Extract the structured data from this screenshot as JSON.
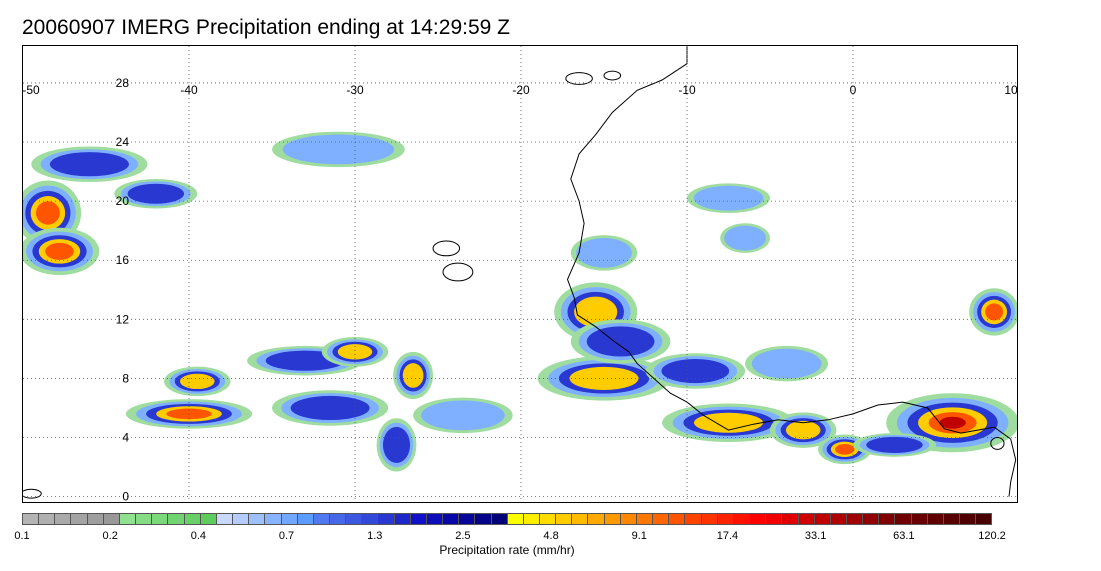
{
  "title": "20060907 IMERG Precipitation ending at 14:29:59 Z",
  "map": {
    "lon_range": [
      -50,
      10
    ],
    "lat_range": [
      -0.5,
      30.5
    ],
    "lon_ticks": [
      -50,
      -40,
      -30,
      -20,
      -10,
      0,
      10
    ],
    "lon_labels": [
      "-50",
      "-40",
      "-30",
      "-20",
      "-10",
      "0",
      "10"
    ],
    "lat_ticks": [
      0,
      4,
      8,
      12,
      16,
      20,
      24,
      28
    ],
    "lat_labels": [
      "0",
      "4",
      "8",
      "12",
      "16",
      "20",
      "24",
      "28"
    ],
    "gridlines": "dotted",
    "coastline_color": "#000000"
  },
  "colorbar": {
    "label": "Precipitation rate (mm/hr)",
    "tick_labels": [
      "0.1",
      "0.2",
      "0.4",
      "0.7",
      "1.3",
      "2.5",
      "4.8",
      "9.1",
      "17.4",
      "33.1",
      "63.1",
      "120.2"
    ],
    "colors": [
      "#b4b4b4",
      "#b0b0b0",
      "#aaaaaa",
      "#a4a4a4",
      "#9e9e9e",
      "#989898",
      "#8fe08f",
      "#85dc85",
      "#7bd87b",
      "#71d471",
      "#67d067",
      "#5dcc5d",
      "#c8d8ff",
      "#b4ccff",
      "#9ec0ff",
      "#88b4ff",
      "#72a8ff",
      "#5c9cff",
      "#5078f0",
      "#4668e8",
      "#3c58e0",
      "#3248d8",
      "#2838d0",
      "#1e28c8",
      "#1010c8",
      "#0c0cb8",
      "#0808a8",
      "#060698",
      "#040488",
      "#020278",
      "#ffff00",
      "#ffee00",
      "#ffdd00",
      "#ffcc00",
      "#ffbb00",
      "#ffaa00",
      "#ff9900",
      "#ff8800",
      "#ff7700",
      "#ff6600",
      "#ff5500",
      "#ff4400",
      "#ff3300",
      "#ff2200",
      "#ff1100",
      "#ff0000",
      "#f00000",
      "#e00000",
      "#d00000",
      "#c00000",
      "#b00000",
      "#a00000",
      "#900000",
      "#800000",
      "#700000",
      "#680000",
      "#600000",
      "#580000",
      "#500000",
      "#480000"
    ]
  },
  "precip_cells": [
    {
      "lon": -48.5,
      "lat": 19.2,
      "rx": 2.0,
      "ry": 2.2,
      "level": 4
    },
    {
      "lon": -47.8,
      "lat": 16.6,
      "rx": 2.4,
      "ry": 1.6,
      "level": 4
    },
    {
      "lon": -46.0,
      "lat": 22.5,
      "rx": 3.5,
      "ry": 1.2,
      "level": 2
    },
    {
      "lon": -42.0,
      "lat": 20.5,
      "rx": 2.5,
      "ry": 1.0,
      "level": 2
    },
    {
      "lon": -40.0,
      "lat": 5.6,
      "rx": 3.8,
      "ry": 1.0,
      "level": 4
    },
    {
      "lon": -39.5,
      "lat": 7.8,
      "rx": 2.0,
      "ry": 1.0,
      "level": 3
    },
    {
      "lon": -33.0,
      "lat": 9.2,
      "rx": 3.5,
      "ry": 1.0,
      "level": 2
    },
    {
      "lon": -30.0,
      "lat": 9.8,
      "rx": 2.0,
      "ry": 1.0,
      "level": 3
    },
    {
      "lon": -31.5,
      "lat": 6.0,
      "rx": 3.5,
      "ry": 1.2,
      "level": 2
    },
    {
      "lon": -26.5,
      "lat": 8.2,
      "rx": 1.2,
      "ry": 1.6,
      "level": 3
    },
    {
      "lon": -27.5,
      "lat": 3.5,
      "rx": 1.2,
      "ry": 1.8,
      "level": 2
    },
    {
      "lon": -23.5,
      "lat": 5.5,
      "rx": 3.0,
      "ry": 1.2,
      "level": 1
    },
    {
      "lon": -31.0,
      "lat": 23.5,
      "rx": 4.0,
      "ry": 1.2,
      "level": 1
    },
    {
      "lon": -15.0,
      "lat": 8.0,
      "rx": 4.0,
      "ry": 1.5,
      "level": 3
    },
    {
      "lon": -15.5,
      "lat": 12.5,
      "rx": 2.5,
      "ry": 2.0,
      "level": 3
    },
    {
      "lon": -14.0,
      "lat": 10.5,
      "rx": 3.0,
      "ry": 1.5,
      "level": 2
    },
    {
      "lon": -15.0,
      "lat": 16.5,
      "rx": 2.0,
      "ry": 1.2,
      "level": 1
    },
    {
      "lon": -9.5,
      "lat": 8.5,
      "rx": 3.0,
      "ry": 1.2,
      "level": 2
    },
    {
      "lon": -7.5,
      "lat": 5.0,
      "rx": 4.0,
      "ry": 1.3,
      "level": 3
    },
    {
      "lon": -3.0,
      "lat": 4.5,
      "rx": 2.0,
      "ry": 1.2,
      "level": 3
    },
    {
      "lon": -0.5,
      "lat": 3.2,
      "rx": 1.6,
      "ry": 1.0,
      "level": 4
    },
    {
      "lon": 6.0,
      "lat": 5.0,
      "rx": 4.0,
      "ry": 2.0,
      "level": 5
    },
    {
      "lon": 8.5,
      "lat": 12.5,
      "rx": 1.5,
      "ry": 1.6,
      "level": 4
    },
    {
      "lon": 2.5,
      "lat": 3.5,
      "rx": 2.5,
      "ry": 0.8,
      "level": 2
    },
    {
      "lon": -7.5,
      "lat": 20.2,
      "rx": 2.5,
      "ry": 1.0,
      "level": 1
    },
    {
      "lon": -6.5,
      "lat": 17.5,
      "rx": 1.5,
      "ry": 1.0,
      "level": 1
    },
    {
      "lon": -4.0,
      "lat": 9.0,
      "rx": 2.5,
      "ry": 1.2,
      "level": 1
    }
  ]
}
